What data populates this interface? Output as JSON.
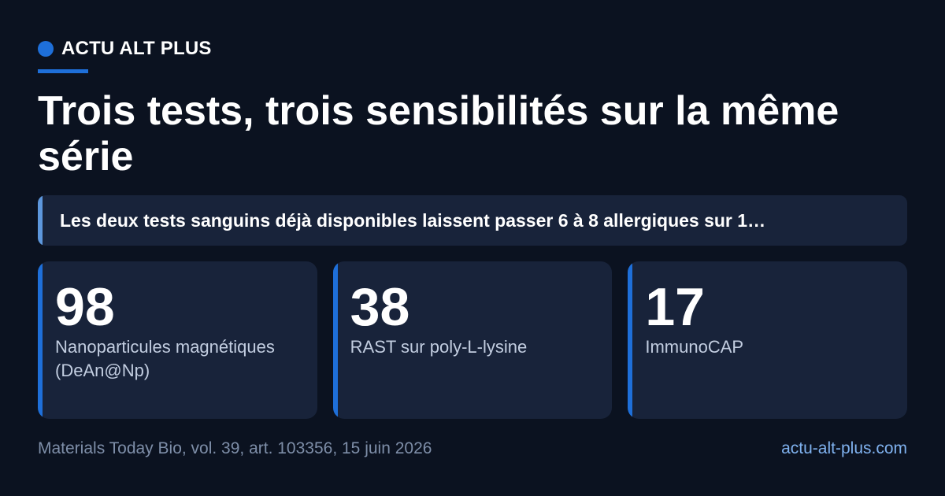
{
  "brand": {
    "name": "ACTU ALT PLUS",
    "accent_color": "#1e6fd9"
  },
  "headline": "Trois tests, trois sensibilités sur la même série",
  "summary": {
    "text": "Les deux tests sanguins déjà disponibles laissent passer 6 à 8 allergiques sur 1…"
  },
  "stats": [
    {
      "value": "98",
      "label": "Nanoparticules magnétiques (DeAn@Np)"
    },
    {
      "value": "38",
      "label": "RAST sur poly-L-lysine"
    },
    {
      "value": "17",
      "label": "ImmunoCAP"
    }
  ],
  "footer": {
    "source": "Materials Today Bio, vol. 39, art. 103356, 15 juin 2026",
    "domain": "actu-alt-plus.com"
  }
}
